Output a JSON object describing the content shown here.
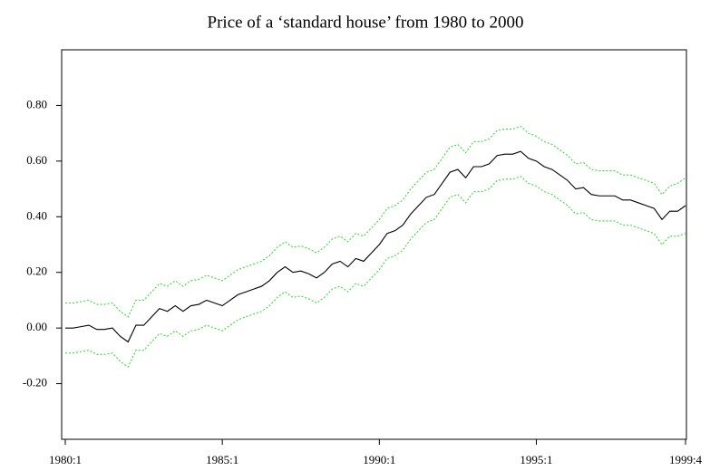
{
  "chart_data": {
    "type": "line",
    "title": "Price of a ‘standard house’ from 1980 to 2000",
    "categories": [
      "1980:1",
      null,
      null,
      null,
      null,
      null,
      null,
      null,
      null,
      null,
      null,
      null,
      null,
      null,
      null,
      null,
      null,
      null,
      null,
      null,
      "1985:1",
      null,
      null,
      null,
      null,
      null,
      null,
      null,
      null,
      null,
      null,
      null,
      null,
      null,
      null,
      null,
      null,
      null,
      null,
      null,
      "1990:1",
      null,
      null,
      null,
      null,
      null,
      null,
      null,
      null,
      null,
      null,
      null,
      null,
      null,
      null,
      null,
      null,
      null,
      null,
      null,
      "1995:1",
      null,
      null,
      null,
      null,
      null,
      null,
      null,
      null,
      null,
      null,
      null,
      null,
      null,
      null,
      null,
      null,
      null,
      null,
      "1999:4"
    ],
    "series": [
      {
        "color": "#000000",
        "style": "solid",
        "values": [
          0.0,
          0.0,
          0.005,
          0.01,
          -0.005,
          -0.005,
          0.0,
          -0.03,
          -0.05,
          0.01,
          0.01,
          0.04,
          0.07,
          0.06,
          0.08,
          0.06,
          0.08,
          0.085,
          0.1,
          0.09,
          0.08,
          0.1,
          0.12,
          0.13,
          0.14,
          0.15,
          0.17,
          0.2,
          0.22,
          0.2,
          0.205,
          0.195,
          0.18,
          0.2,
          0.23,
          0.24,
          0.22,
          0.25,
          0.24,
          0.27,
          0.3,
          0.34,
          0.35,
          0.37,
          0.41,
          0.44,
          0.47,
          0.48,
          0.52,
          0.56,
          0.57,
          0.54,
          0.58,
          0.58,
          0.59,
          0.62,
          0.625,
          0.625,
          0.635,
          0.61,
          0.6,
          0.58,
          0.57,
          0.55,
          0.53,
          0.5,
          0.505,
          0.48,
          0.475,
          0.475,
          0.475,
          0.46,
          0.46,
          0.45,
          0.44,
          0.43,
          0.39,
          0.42,
          0.42,
          0.44
        ]
      },
      {
        "color": "#33dd33",
        "style": "dotted",
        "values": [
          0.09,
          0.09,
          0.095,
          0.1,
          0.085,
          0.085,
          0.09,
          0.06,
          0.04,
          0.1,
          0.1,
          0.13,
          0.16,
          0.15,
          0.17,
          0.15,
          0.17,
          0.175,
          0.19,
          0.18,
          0.17,
          0.19,
          0.21,
          0.22,
          0.23,
          0.24,
          0.26,
          0.29,
          0.31,
          0.29,
          0.295,
          0.285,
          0.27,
          0.29,
          0.32,
          0.33,
          0.31,
          0.34,
          0.33,
          0.36,
          0.39,
          0.43,
          0.44,
          0.46,
          0.5,
          0.53,
          0.56,
          0.57,
          0.61,
          0.65,
          0.66,
          0.63,
          0.67,
          0.67,
          0.68,
          0.71,
          0.715,
          0.715,
          0.725,
          0.7,
          0.69,
          0.67,
          0.66,
          0.64,
          0.62,
          0.59,
          0.595,
          0.57,
          0.565,
          0.565,
          0.565,
          0.55,
          0.55,
          0.54,
          0.53,
          0.52,
          0.48,
          0.51,
          0.52,
          0.54
        ]
      },
      {
        "color": "#33dd33",
        "style": "dotted",
        "values": [
          -0.09,
          -0.09,
          -0.085,
          -0.08,
          -0.095,
          -0.095,
          -0.09,
          -0.12,
          -0.14,
          -0.08,
          -0.08,
          -0.05,
          -0.02,
          -0.03,
          -0.01,
          -0.03,
          -0.01,
          -0.005,
          0.01,
          0.0,
          -0.01,
          0.01,
          0.03,
          0.04,
          0.05,
          0.06,
          0.08,
          0.11,
          0.13,
          0.11,
          0.115,
          0.105,
          0.09,
          0.11,
          0.14,
          0.15,
          0.13,
          0.16,
          0.15,
          0.18,
          0.21,
          0.25,
          0.26,
          0.28,
          0.32,
          0.35,
          0.38,
          0.39,
          0.43,
          0.47,
          0.48,
          0.45,
          0.49,
          0.49,
          0.5,
          0.53,
          0.535,
          0.535,
          0.545,
          0.52,
          0.51,
          0.49,
          0.48,
          0.46,
          0.44,
          0.41,
          0.415,
          0.39,
          0.385,
          0.385,
          0.385,
          0.37,
          0.37,
          0.36,
          0.35,
          0.34,
          0.3,
          0.33,
          0.33,
          0.34
        ]
      }
    ],
    "ylim": [
      -0.4,
      1.0
    ],
    "yticks": [
      {
        "value": -0.2,
        "label": "-0.20"
      },
      {
        "value": 0,
        "label": "0.00"
      },
      {
        "value": 0.2,
        "label": "0.20"
      },
      {
        "value": 0.4,
        "label": "0.40"
      },
      {
        "value": 0.6,
        "label": "0.60"
      },
      {
        "value": 0.8,
        "label": "0.80"
      }
    ],
    "grid": false
  }
}
